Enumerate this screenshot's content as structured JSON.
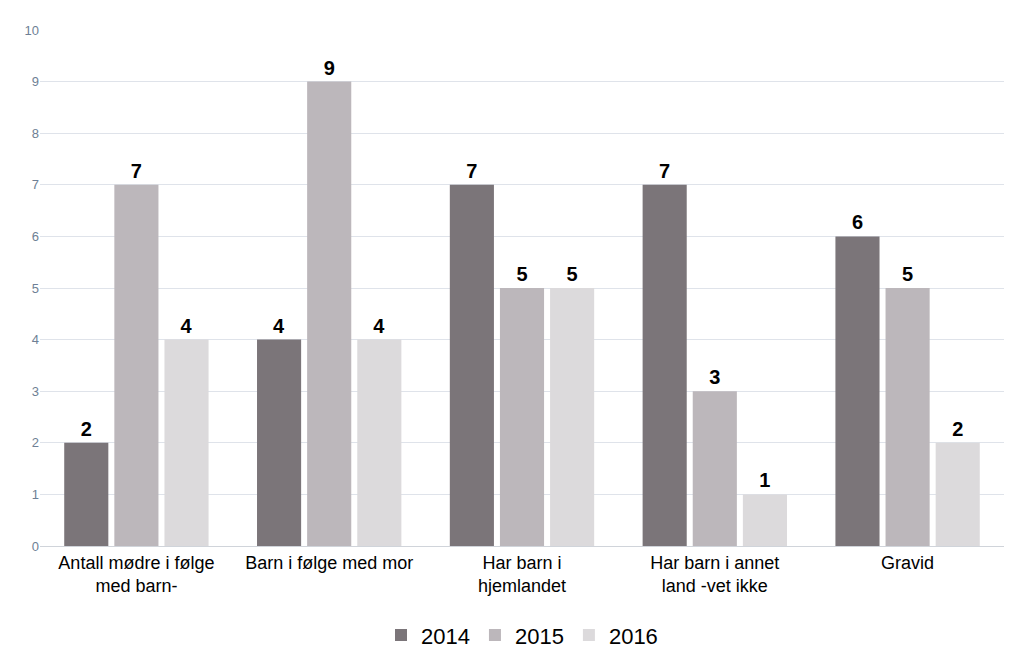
{
  "chart_data": {
    "type": "bar",
    "categories": [
      "Antall mødre i følge med barn-",
      "Barn i følge med mor",
      "Har barn i hjemlandet",
      "Har barn i annet land -vet ikke",
      "Gravid"
    ],
    "series": [
      {
        "name": "2014",
        "color": "#7b7579",
        "values": [
          2,
          4,
          7,
          7,
          6
        ]
      },
      {
        "name": "2015",
        "color": "#bcb7bb",
        "values": [
          7,
          9,
          5,
          3,
          5
        ]
      },
      {
        "name": "2016",
        "color": "#dcdadc",
        "values": [
          4,
          4,
          5,
          1,
          2
        ]
      }
    ],
    "ylim": [
      0,
      10
    ],
    "yticks": [
      0,
      1,
      2,
      3,
      4,
      5,
      6,
      7,
      8,
      9,
      10
    ],
    "grid": true,
    "legend": "bottom",
    "data_labels": true
  }
}
